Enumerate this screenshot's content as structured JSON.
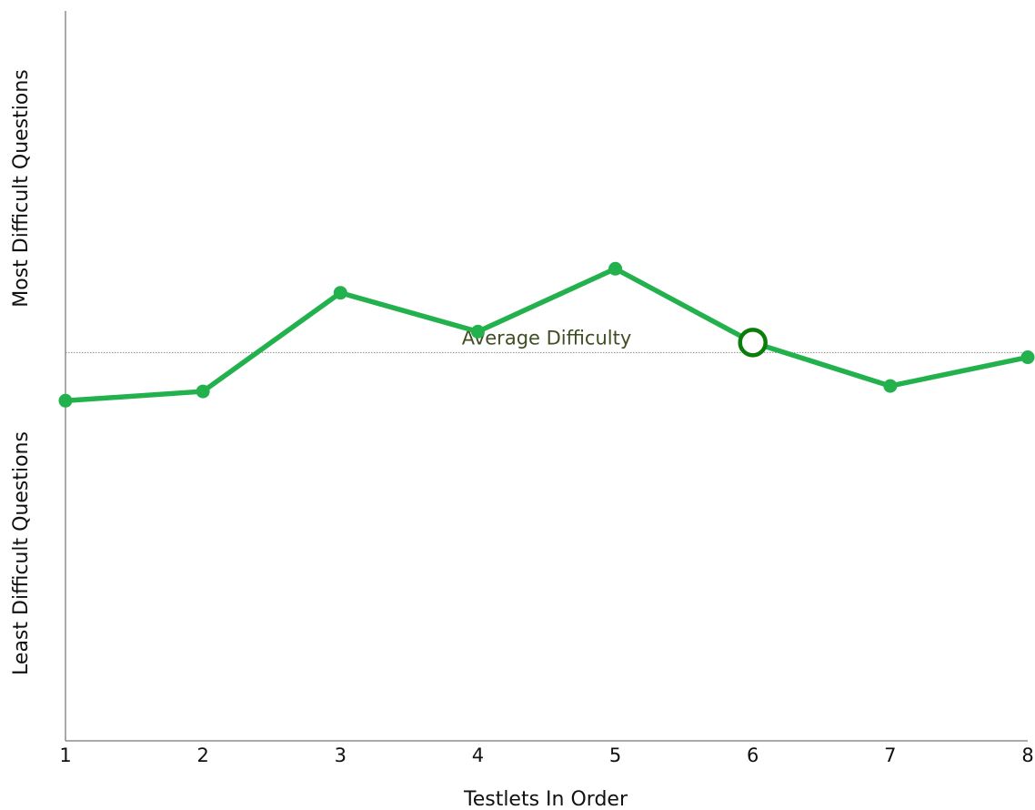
{
  "chart_data": {
    "type": "line",
    "x": [
      1,
      2,
      3,
      4,
      5,
      6,
      7,
      8
    ],
    "series": [
      {
        "values": [
          -0.62,
          -0.5,
          0.77,
          0.27,
          1.08,
          0.13,
          -0.43,
          -0.06
        ],
        "color": "#22b14c"
      }
    ],
    "highlight": {
      "x": 6,
      "y": 0.13,
      "color": "#0a7d0a",
      "marker": "hollow-circle"
    },
    "reference_line": {
      "y": 0,
      "label": "Average Difficulty",
      "style": "dotted"
    },
    "xlim": [
      1,
      8
    ],
    "ylim": [
      -5,
      4.4
    ],
    "xlabel": "Testlets In Order",
    "ylabel_top": "Most Difficult Questions",
    "ylabel_bottom": "Least Difficult Questions",
    "grid": false,
    "legend": "none",
    "x_ticks": [
      "1",
      "2",
      "3",
      "4",
      "5",
      "6",
      "7",
      "8"
    ]
  }
}
